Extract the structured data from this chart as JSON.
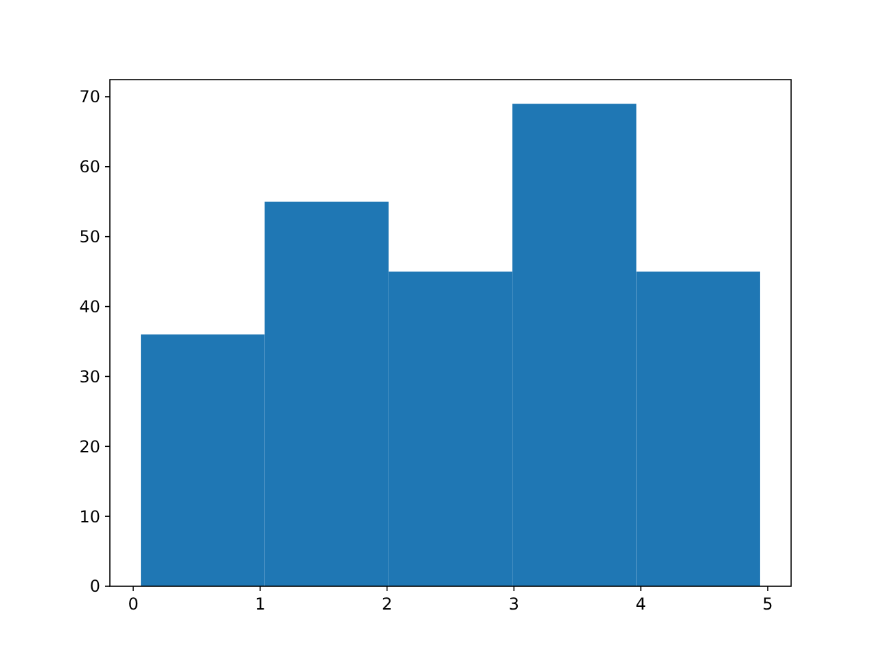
{
  "chart_data": {
    "type": "histogram",
    "bins": [
      0.06,
      1.036,
      2.012,
      2.988,
      3.964,
      4.94
    ],
    "values": [
      36,
      55,
      45,
      69,
      45
    ],
    "color": "#1f77b4",
    "xlim": [
      -0.184,
      5.184
    ],
    "xticks": [
      0,
      1,
      2,
      3,
      4,
      5
    ],
    "ylim": [
      0,
      72.45
    ],
    "yticks": [
      0,
      10,
      20,
      30,
      40,
      50,
      60,
      70
    ],
    "grid": false
  }
}
